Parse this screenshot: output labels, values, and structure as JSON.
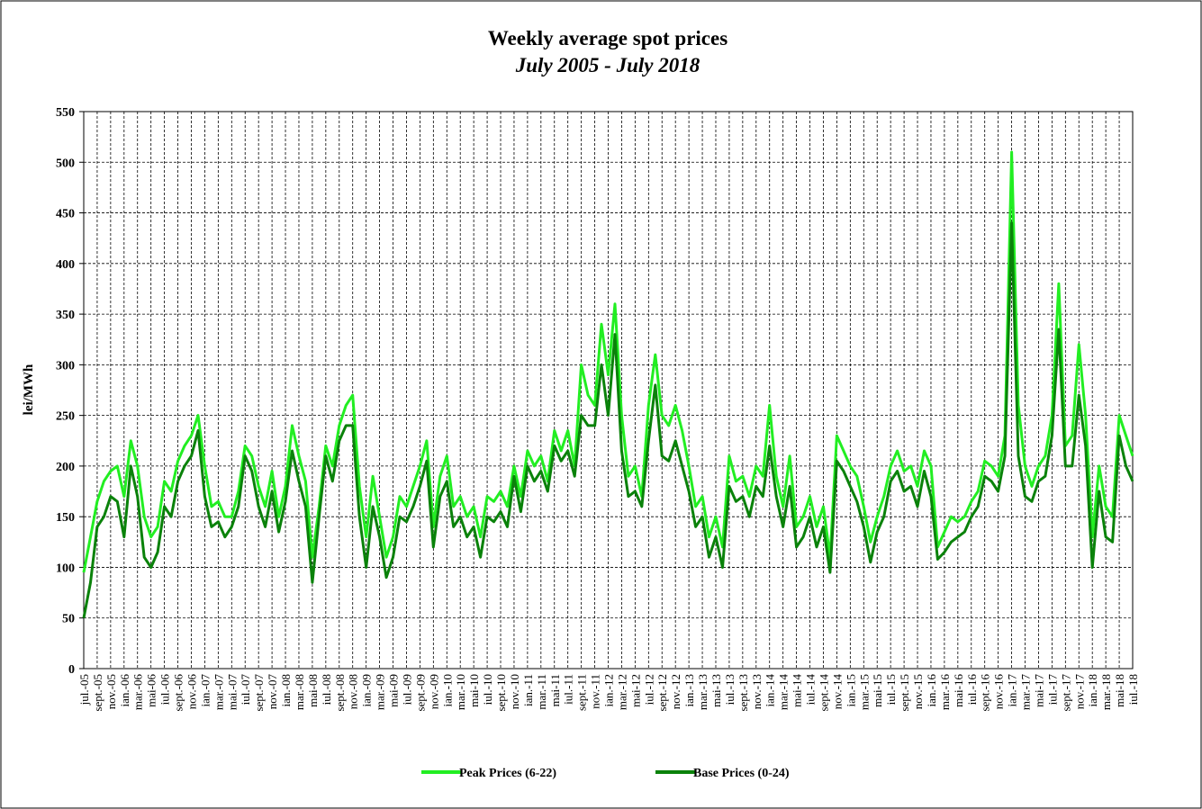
{
  "chart_data": {
    "type": "line",
    "title": "Weekly average spot prices",
    "subtitle": "July 2005 -  July 2018",
    "y_label": "lei/MWh",
    "categories": [
      "jul.-05",
      null,
      "sept.-05",
      null,
      "nov.-05",
      null,
      "ian.-06",
      null,
      "mar.-06",
      null,
      "mai-06",
      null,
      "iul.-06",
      null,
      "sept.-06",
      null,
      "nov.-06",
      null,
      "ian.-07",
      null,
      "mar.-07",
      null,
      "mai.-07",
      null,
      "iul.-07",
      null,
      "sept.-07",
      null,
      "nov.-07",
      null,
      "ian.-08",
      null,
      "mar.-08",
      null,
      "mai-08",
      null,
      "iul.-08",
      null,
      "sept.-08",
      null,
      "nov.-08",
      null,
      "ian.-09",
      null,
      "mar.-09",
      null,
      "mai-09",
      null,
      "iul.-09",
      null,
      "sept.-09",
      null,
      "nov.-09",
      null,
      "ian.-10",
      null,
      "mar.-10",
      null,
      "mai-10",
      null,
      "iul.-10",
      null,
      "sept.-10",
      null,
      "nov.-10",
      null,
      "ian.-11",
      null,
      "mar.-11",
      null,
      "mai-11",
      null,
      "iul.-11",
      null,
      "sept.-11",
      null,
      "nov.-11",
      null,
      "ian.-12",
      null,
      "mar.-12",
      null,
      "mai-12",
      null,
      "iul.-12",
      null,
      "sept.-12",
      null,
      "nov.-12",
      null,
      "ian.-13",
      null,
      "mar.-13",
      null,
      "mai-13",
      null,
      "iul.-13",
      null,
      "sept.-13",
      null,
      "nov.-13",
      null,
      "ian.-14",
      null,
      "mar.-14",
      null,
      "mai-14",
      null,
      "iul.-14",
      null,
      "sept.-14",
      null,
      "nov.-14",
      null,
      "ian.-15",
      null,
      "mar.-15",
      null,
      "mai-15",
      null,
      "iul.-15",
      null,
      "sept.-15",
      null,
      "nov.-15",
      null,
      "ian.-16",
      null,
      "mar.-16",
      null,
      "mai-16",
      null,
      "iul.-16",
      null,
      "sept.-16",
      null,
      "nov.-16",
      null,
      "ian.-17",
      null,
      "mar.-17",
      null,
      "mai-17",
      null,
      "iul.-17",
      null,
      "sept.-17",
      null,
      "nov.-17",
      null,
      "ian.-18",
      null,
      "mar.-18",
      null,
      "mai-18",
      null,
      "iul.-18"
    ],
    "series": [
      {
        "name": "Peak Prices (6-22)",
        "color": "#22ee22",
        "values": [
          95,
          130,
          165,
          185,
          195,
          200,
          170,
          225,
          200,
          150,
          130,
          140,
          185,
          175,
          205,
          220,
          230,
          250,
          200,
          160,
          165,
          150,
          150,
          175,
          220,
          210,
          180,
          160,
          195,
          150,
          180,
          240,
          210,
          185,
          110,
          160,
          220,
          200,
          240,
          260,
          270,
          180,
          130,
          190,
          150,
          110,
          130,
          170,
          160,
          180,
          200,
          225,
          140,
          190,
          210,
          160,
          170,
          150,
          160,
          130,
          170,
          165,
          175,
          160,
          200,
          170,
          215,
          200,
          210,
          185,
          235,
          215,
          235,
          200,
          300,
          270,
          260,
          340,
          290,
          360,
          250,
          190,
          200,
          170,
          260,
          310,
          250,
          240,
          260,
          235,
          200,
          160,
          170,
          130,
          150,
          120,
          210,
          185,
          190,
          170,
          200,
          190,
          260,
          190,
          160,
          210,
          140,
          150,
          170,
          140,
          160,
          110,
          230,
          215,
          200,
          190,
          160,
          125,
          150,
          170,
          200,
          215,
          195,
          200,
          180,
          215,
          200,
          120,
          135,
          150,
          145,
          150,
          165,
          175,
          205,
          200,
          190,
          230,
          510,
          260,
          200,
          180,
          200,
          210,
          250,
          380,
          220,
          230,
          320,
          250,
          130,
          200,
          160,
          150,
          250,
          230,
          210
        ]
      },
      {
        "name": "Base Prices (0-24)",
        "color": "#0a820a",
        "values": [
          50,
          85,
          140,
          150,
          170,
          165,
          130,
          200,
          170,
          110,
          100,
          115,
          160,
          150,
          185,
          200,
          210,
          235,
          170,
          140,
          145,
          130,
          140,
          160,
          210,
          195,
          160,
          140,
          175,
          135,
          165,
          215,
          185,
          160,
          85,
          150,
          210,
          185,
          225,
          240,
          240,
          150,
          100,
          160,
          130,
          90,
          110,
          150,
          145,
          160,
          180,
          205,
          120,
          170,
          185,
          140,
          150,
          130,
          140,
          110,
          150,
          145,
          155,
          140,
          190,
          155,
          200,
          185,
          195,
          175,
          220,
          205,
          215,
          190,
          250,
          240,
          240,
          300,
          250,
          330,
          215,
          170,
          175,
          160,
          225,
          280,
          210,
          205,
          225,
          200,
          175,
          140,
          150,
          110,
          130,
          100,
          180,
          165,
          170,
          150,
          180,
          170,
          220,
          170,
          140,
          180,
          120,
          130,
          150,
          120,
          140,
          95,
          205,
          195,
          180,
          165,
          140,
          105,
          135,
          150,
          185,
          195,
          175,
          180,
          160,
          195,
          170,
          108,
          115,
          125,
          130,
          135,
          150,
          160,
          190,
          185,
          175,
          210,
          440,
          210,
          170,
          165,
          185,
          190,
          230,
          335,
          200,
          200,
          270,
          220,
          100,
          175,
          130,
          125,
          230,
          200,
          185
        ]
      }
    ],
    "ylim": [
      0,
      550
    ],
    "yticks": [
      0,
      50,
      100,
      150,
      200,
      250,
      300,
      350,
      400,
      450,
      500,
      550
    ],
    "grid": true,
    "legend": "bottom"
  }
}
